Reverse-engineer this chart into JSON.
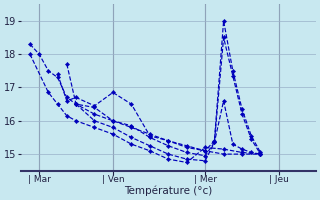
{
  "background_color": "#c8e8f0",
  "grid_color": "#9ab0c8",
  "line_color": "#0000bb",
  "ylim": [
    14.5,
    19.5
  ],
  "yticks": [
    15,
    16,
    17,
    18,
    19
  ],
  "xlabel": "Température (°c)",
  "xlim": [
    0,
    16
  ],
  "vline_x": [
    1,
    5,
    10,
    14
  ],
  "day_labels": [
    "Mar",
    "Ven",
    "Mer",
    "Jeu"
  ],
  "series": [
    {
      "x": [
        0.5,
        1.0,
        1.5,
        2.0,
        2.5,
        3.0,
        4.0,
        5.0,
        6.0,
        7.0,
        8.0,
        9.0,
        10.0,
        11.0,
        12.0,
        13.0
      ],
      "y": [
        18.3,
        18.0,
        17.5,
        17.3,
        16.7,
        16.5,
        16.2,
        16.0,
        15.8,
        15.6,
        15.4,
        15.2,
        15.1,
        15.0,
        15.0,
        15.0
      ]
    },
    {
      "x": [
        0.5,
        1.5,
        2.0,
        2.5,
        3.0,
        4.0,
        5.0,
        6.0,
        7.0,
        8.0,
        9.0,
        10.0,
        11.0,
        12.0,
        13.0
      ],
      "y": [
        18.0,
        16.85,
        16.5,
        16.15,
        16.0,
        15.8,
        15.6,
        15.3,
        15.1,
        14.85,
        14.75,
        15.2,
        15.15,
        15.05,
        15.0
      ]
    },
    {
      "x": [
        2.0,
        2.5,
        3.0,
        4.0,
        5.0,
        6.0,
        7.0,
        8.0,
        9.0,
        10.0,
        10.5,
        11.0,
        11.5,
        12.0,
        12.5,
        13.0
      ],
      "y": [
        17.4,
        16.6,
        16.7,
        16.45,
        16.85,
        16.5,
        15.55,
        15.4,
        15.25,
        15.1,
        15.4,
        19.0,
        17.5,
        16.35,
        15.55,
        15.05
      ]
    },
    {
      "x": [
        2.5,
        3.0,
        4.0,
        5.0,
        6.0,
        7.0,
        8.0,
        9.0,
        10.0,
        10.5,
        11.0,
        11.5,
        12.0,
        12.5,
        13.0
      ],
      "y": [
        17.7,
        16.5,
        16.4,
        16.0,
        15.85,
        15.5,
        15.25,
        15.05,
        14.95,
        15.35,
        18.5,
        17.35,
        16.2,
        15.45,
        15.0
      ]
    },
    {
      "x": [
        3.0,
        4.0,
        5.0,
        6.0,
        7.0,
        8.0,
        9.0,
        10.0,
        10.5,
        11.0,
        11.5,
        12.0,
        12.5,
        13.0
      ],
      "y": [
        16.5,
        16.0,
        15.8,
        15.5,
        15.25,
        15.0,
        14.85,
        14.8,
        15.35,
        16.6,
        15.3,
        15.15,
        15.05,
        15.0
      ]
    }
  ]
}
